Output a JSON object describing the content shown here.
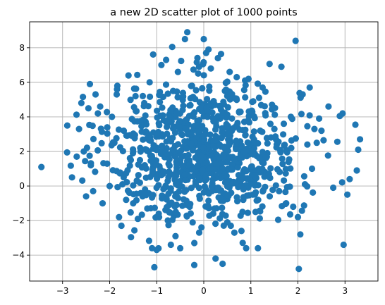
{
  "chart_data": {
    "type": "scatter",
    "title": "a new 2D scatter plot of 1000 points",
    "xlabel": "",
    "ylabel": "",
    "xlim": [
      -3.7,
      3.7
    ],
    "ylim": [
      -5.5,
      9.5
    ],
    "x_ticks": [
      -3,
      -2,
      -1,
      0,
      1,
      2,
      3
    ],
    "y_ticks": [
      -4,
      -2,
      0,
      2,
      4,
      6,
      8
    ],
    "x_tick_labels": [
      "−3",
      "−2",
      "−1",
      "0",
      "1",
      "2",
      "3"
    ],
    "y_tick_labels": [
      "−4",
      "−2",
      "0",
      "2",
      "4",
      "6",
      "8"
    ],
    "grid": true,
    "point_color": "#1f77b4",
    "num_points": 1000,
    "points": [
      [
        -3.45,
        1.1
      ],
      [
        -2.9,
        3.5
      ],
      [
        -2.8,
        0.5
      ],
      [
        -2.7,
        1.7
      ],
      [
        -2.65,
        3.3
      ],
      [
        -2.6,
        4.8
      ],
      [
        -2.55,
        2.0
      ],
      [
        -2.5,
        -0.6
      ],
      [
        -2.45,
        4.5
      ],
      [
        -2.4,
        1.2
      ],
      [
        -2.35,
        -0.3
      ],
      [
        -2.3,
        5.3
      ],
      [
        -2.25,
        4.2
      ],
      [
        -2.2,
        4.6
      ],
      [
        -2.15,
        -1.0
      ],
      [
        -2.05,
        3.4
      ],
      [
        -2.0,
        0.0
      ],
      [
        -1.95,
        4.0
      ],
      [
        -1.9,
        2.5
      ],
      [
        -1.85,
        5.3
      ],
      [
        -1.8,
        -1.8
      ],
      [
        -1.75,
        -2.3
      ],
      [
        -1.7,
        3.2
      ],
      [
        -1.65,
        -0.8
      ],
      [
        -1.6,
        6.4
      ],
      [
        -1.55,
        1.5
      ],
      [
        -1.5,
        -1.0
      ],
      [
        -1.45,
        5.2
      ],
      [
        -1.4,
        -1.9
      ],
      [
        -1.35,
        2.2
      ],
      [
        -1.3,
        -0.6
      ],
      [
        -1.25,
        3.1
      ],
      [
        -1.2,
        -1.3
      ],
      [
        -1.15,
        6.0
      ],
      [
        -1.1,
        -3.6
      ],
      [
        -1.05,
        -4.7
      ],
      [
        -1.0,
        -3.7
      ],
      [
        -0.95,
        -1.8
      ],
      [
        -0.9,
        7.0
      ],
      [
        -0.85,
        3.8
      ],
      [
        -0.8,
        7.3
      ],
      [
        -0.75,
        0.5
      ],
      [
        -0.7,
        -3.4
      ],
      [
        -0.65,
        5.5
      ],
      [
        -0.6,
        -2.9
      ],
      [
        -0.55,
        6.6
      ],
      [
        -0.5,
        -3.6
      ],
      [
        -0.45,
        4.4
      ],
      [
        -0.4,
        8.5
      ],
      [
        -0.35,
        8.9
      ],
      [
        -0.3,
        -1.2
      ],
      [
        -0.25,
        5.8
      ],
      [
        -0.2,
        -3.3
      ],
      [
        -0.15,
        2.7
      ],
      [
        -0.1,
        6.9
      ],
      [
        -0.05,
        -2.4
      ],
      [
        0.0,
        8.5
      ],
      [
        0.05,
        7.7
      ],
      [
        0.1,
        7.9
      ],
      [
        0.15,
        6.8
      ],
      [
        0.2,
        -1.6
      ],
      [
        0.25,
        -4.2
      ],
      [
        0.3,
        7.4
      ],
      [
        0.35,
        3.9
      ],
      [
        0.4,
        -4.5
      ],
      [
        0.45,
        5.5
      ],
      [
        0.5,
        -2.1
      ],
      [
        0.55,
        6.6
      ],
      [
        0.6,
        1.6
      ],
      [
        0.65,
        -2.7
      ],
      [
        0.7,
        6.3
      ],
      [
        0.75,
        4.3
      ],
      [
        0.8,
        -2.6
      ],
      [
        0.85,
        2.0
      ],
      [
        0.9,
        -3.6
      ],
      [
        0.95,
        6.2
      ],
      [
        1.0,
        0.3
      ],
      [
        1.05,
        4.9
      ],
      [
        1.1,
        -1.5
      ],
      [
        1.15,
        -3.6
      ],
      [
        1.2,
        3.2
      ],
      [
        1.25,
        5.7
      ],
      [
        1.3,
        0.8
      ],
      [
        1.35,
        1.9
      ],
      [
        1.4,
        -0.6
      ],
      [
        1.45,
        4.7
      ],
      [
        1.5,
        3.3
      ],
      [
        1.55,
        2.4
      ],
      [
        1.6,
        -0.3
      ],
      [
        1.65,
        6.9
      ],
      [
        1.7,
        3.6
      ],
      [
        1.75,
        -1.0
      ],
      [
        1.8,
        1.4
      ],
      [
        1.85,
        4.0
      ],
      [
        1.9,
        -1.2
      ],
      [
        1.95,
        8.4
      ],
      [
        2.0,
        -1.8
      ],
      [
        2.02,
        -4.8
      ],
      [
        2.05,
        -2.8
      ],
      [
        2.1,
        5.3
      ],
      [
        2.15,
        0.1
      ],
      [
        2.2,
        2.4
      ],
      [
        2.25,
        5.7
      ],
      [
        2.3,
        1.0
      ],
      [
        2.35,
        3.3
      ],
      [
        2.4,
        2.5
      ],
      [
        2.45,
        3.9
      ],
      [
        2.5,
        3.2
      ],
      [
        2.65,
        4.6
      ],
      [
        2.75,
        -0.1
      ],
      [
        2.95,
        4.2
      ],
      [
        2.97,
        -3.4
      ],
      [
        3.05,
        -0.5
      ],
      [
        3.1,
        0.4
      ],
      [
        3.25,
        0.9
      ],
      [
        3.28,
        2.1
      ],
      [
        3.32,
        2.7
      ]
    ]
  }
}
